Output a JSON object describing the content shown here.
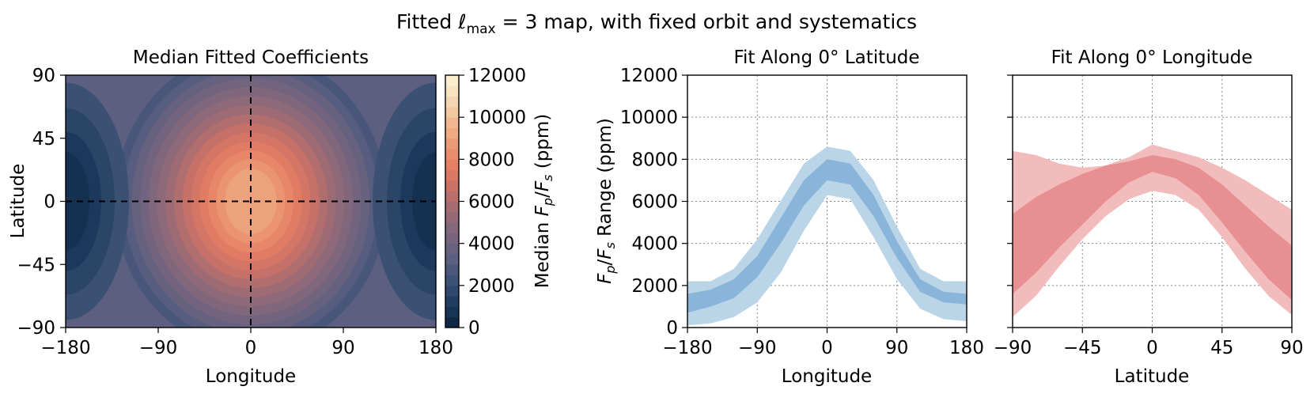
{
  "suptitle_prefix": "Fitted ",
  "suptitle_ell": "ℓ",
  "suptitle_ell_sub": "max",
  "suptitle_suffix": " = 3 map, with fixed orbit and systematics",
  "colors": {
    "band_blue_outer": "#bad4e8",
    "band_blue_inner": "#88b5d9",
    "band_red_outer": "#f2bcbd",
    "band_red_inner": "#e88f91",
    "colormap": [
      "#0c2340",
      "#1e3a5c",
      "#3a5174",
      "#5c5f80",
      "#7a667d",
      "#9a6b76",
      "#c57068",
      "#e47d63",
      "#eb9a74",
      "#f0bb94",
      "#f6dbb8",
      "#fdf3d7"
    ]
  },
  "chart_data": [
    {
      "type": "heatmap",
      "title": "Median Fitted Coefficients",
      "xlabel": "Longitude",
      "ylabel": "Latitude",
      "xlim": [
        -180,
        180
      ],
      "ylim": [
        -90,
        90
      ],
      "xticks": [
        "−180",
        "−90",
        "0",
        "90",
        "180"
      ],
      "yticks": [
        "−90",
        "−45",
        "0",
        "45",
        "90"
      ],
      "guide_lines": {
        "longitude": 0,
        "latitude": 0
      },
      "hotspot": {
        "lon": 0,
        "lat": 0,
        "peak_ppm": 9000
      },
      "colorbar": {
        "label_prefix": "Median ",
        "label_fp": "F",
        "label_fp_sub": "p",
        "label_fs": "F",
        "label_fs_sub": "s",
        "label_suffix": " (ppm)",
        "range": [
          0,
          12000
        ],
        "levels": 24,
        "ticks": [
          "0",
          "2000",
          "4000",
          "6000",
          "8000",
          "10000",
          "12000"
        ]
      }
    },
    {
      "type": "area",
      "title": "Fit Along 0° Latitude",
      "xlabel": "Longitude",
      "ylabel_fp": "F",
      "ylabel_fp_sub": "p",
      "ylabel_fs": "F",
      "ylabel_fs_sub": "s",
      "ylabel_suffix": " Range (ppm)",
      "xlim": [
        -180,
        180
      ],
      "ylim": [
        0,
        12000
      ],
      "xticks": [
        "−180",
        "−90",
        "0",
        "90",
        "180"
      ],
      "yticks": [
        "0",
        "2000",
        "4000",
        "6000",
        "8000",
        "10000",
        "12000"
      ],
      "grid": true,
      "x": [
        -180,
        -150,
        -120,
        -90,
        -60,
        -30,
        0,
        30,
        60,
        90,
        120,
        150,
        180
      ],
      "outer_low": [
        100,
        200,
        500,
        1200,
        2600,
        4600,
        6300,
        6100,
        4300,
        2300,
        900,
        400,
        300
      ],
      "outer_high": [
        2200,
        2200,
        2800,
        4200,
        6000,
        7800,
        8600,
        8400,
        7000,
        4800,
        2800,
        2200,
        2200
      ],
      "inner_low": [
        700,
        1000,
        1400,
        2400,
        4000,
        5800,
        7000,
        6800,
        5300,
        3300,
        1700,
        1200,
        1100
      ],
      "inner_high": [
        1600,
        1800,
        2300,
        3400,
        5200,
        7000,
        8000,
        7800,
        6300,
        4100,
        2300,
        1700,
        1600
      ]
    },
    {
      "type": "area",
      "title": "Fit Along 0° Longitude",
      "xlabel": "Latitude",
      "xlim": [
        -90,
        90
      ],
      "ylim": [
        0,
        12000
      ],
      "xticks": [
        "−90",
        "−45",
        "0",
        "45",
        "90"
      ],
      "grid": true,
      "x": [
        -90,
        -75,
        -60,
        -45,
        -30,
        -15,
        0,
        15,
        30,
        45,
        60,
        75,
        90
      ],
      "outer_low": [
        500,
        1500,
        2900,
        4200,
        5300,
        6100,
        6500,
        6300,
        5600,
        4300,
        2800,
        1500,
        600
      ],
      "outer_high": [
        8400,
        8200,
        7800,
        7600,
        7700,
        8100,
        8700,
        8400,
        8100,
        7600,
        7000,
        6300,
        5600
      ],
      "inner_low": [
        1600,
        2600,
        3800,
        4900,
        6000,
        6900,
        7400,
        7100,
        6300,
        5000,
        3600,
        2300,
        1300
      ],
      "inner_high": [
        5400,
        6200,
        6800,
        7300,
        7700,
        7900,
        8200,
        8000,
        7600,
        6800,
        5800,
        4800,
        3900
      ]
    }
  ]
}
